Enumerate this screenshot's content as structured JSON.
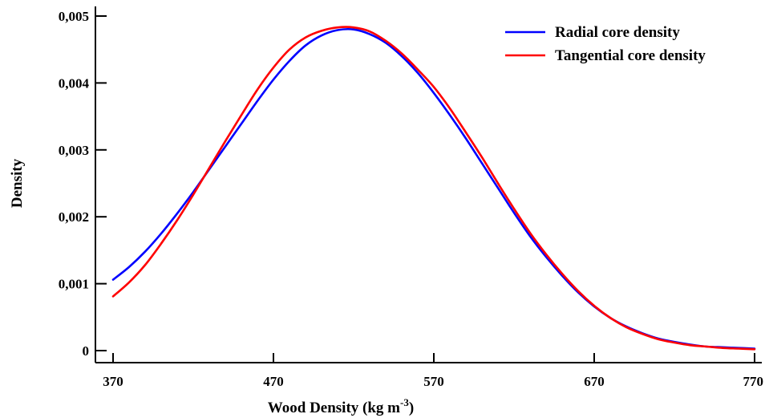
{
  "chart_data": {
    "type": "line",
    "xlabel": "Wood  Density (kg m",
    "xlabel_sup": "-3",
    "xlabel_close": ")",
    "ylabel": "Density",
    "xlim": [
      370,
      770
    ],
    "ylim": [
      0,
      0.005
    ],
    "x_ticks": [
      370,
      470,
      570,
      670,
      770
    ],
    "x_tick_labels": [
      "370",
      "470",
      "570",
      "670",
      "770"
    ],
    "y_ticks": [
      0,
      0.001,
      0.002,
      0.003,
      0.004,
      0.005
    ],
    "y_tick_labels": [
      "0",
      "0,001",
      "0,002",
      "0,003",
      "0,004",
      "0,005"
    ],
    "grid": false,
    "legend_position": "top-right",
    "series": [
      {
        "name": "Radial core density",
        "color": "#0000ff",
        "x": [
          370,
          380,
          390,
          400,
          410,
          420,
          430,
          440,
          450,
          460,
          470,
          480,
          490,
          500,
          510,
          520,
          530,
          540,
          550,
          560,
          570,
          580,
          590,
          600,
          610,
          620,
          630,
          640,
          650,
          660,
          670,
          680,
          690,
          700,
          710,
          720,
          730,
          740,
          750,
          760,
          770
        ],
        "y": [
          0.00106,
          0.00125,
          0.00148,
          0.00175,
          0.00205,
          0.00237,
          0.00271,
          0.00305,
          0.00339,
          0.00373,
          0.00405,
          0.00433,
          0.00456,
          0.00471,
          0.00479,
          0.0048,
          0.00473,
          0.0046,
          0.0044,
          0.00415,
          0.00385,
          0.00352,
          0.00317,
          0.0028,
          0.00243,
          0.00206,
          0.00171,
          0.0014,
          0.00112,
          0.00087,
          0.00066,
          0.00049,
          0.00036,
          0.00026,
          0.00018,
          0.00013,
          9e-05,
          6e-05,
          5e-05,
          4e-05,
          3e-05
        ]
      },
      {
        "name": "Tangential core density",
        "color": "#ff0000",
        "x": [
          370,
          380,
          390,
          400,
          410,
          420,
          430,
          440,
          450,
          460,
          470,
          480,
          490,
          500,
          510,
          520,
          530,
          540,
          550,
          560,
          570,
          580,
          590,
          600,
          610,
          620,
          630,
          640,
          650,
          660,
          670,
          680,
          690,
          700,
          710,
          720,
          730,
          740,
          750,
          760,
          770
        ],
        "y": [
          0.00081,
          0.00102,
          0.00128,
          0.0016,
          0.00195,
          0.00233,
          0.00273,
          0.00313,
          0.00352,
          0.0039,
          0.00423,
          0.0045,
          0.00468,
          0.00478,
          0.00483,
          0.00483,
          0.00477,
          0.00463,
          0.00444,
          0.0042,
          0.00394,
          0.00362,
          0.00326,
          0.00289,
          0.0025,
          0.00212,
          0.00176,
          0.00144,
          0.00115,
          0.00089,
          0.00067,
          0.00049,
          0.00035,
          0.00025,
          0.00017,
          0.00012,
          8e-05,
          6e-05,
          4e-05,
          3e-05,
          2e-05
        ]
      }
    ]
  }
}
